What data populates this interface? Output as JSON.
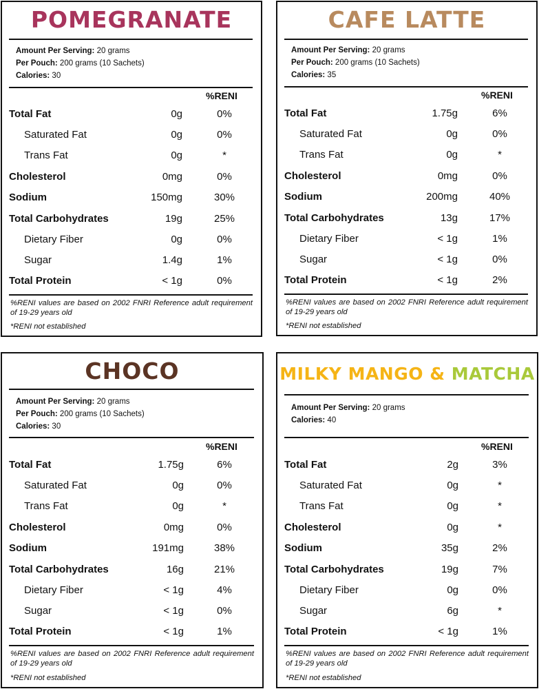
{
  "panels": [
    {
      "title": "POMEGRANATE",
      "title_color": "#a8345c",
      "amount_per_serving_label": "Amount Per Serving:",
      "amount_per_serving": "20 grams",
      "per_pouch_label": "Per Pouch:",
      "per_pouch": "200 grams (10 Sachets)",
      "calories_label": "Calories:",
      "calories": "30",
      "reni_header": "%RENI",
      "rows": [
        {
          "label": "Total Fat",
          "amount": "0g",
          "reni": "0%"
        },
        {
          "label": "Saturated Fat",
          "amount": "0g",
          "reni": "0%"
        },
        {
          "label": "Trans Fat",
          "amount": "0g",
          "reni": "*"
        },
        {
          "label": "Cholesterol",
          "amount": "0mg",
          "reni": "0%"
        },
        {
          "label": "Sodium",
          "amount": "150mg",
          "reni": "30%"
        },
        {
          "label": "Total Carbohydrates",
          "amount": "19g",
          "reni": "25%"
        },
        {
          "label": "Dietary Fiber",
          "amount": "0g",
          "reni": "0%"
        },
        {
          "label": "Sugar",
          "amount": "1.4g",
          "reni": "1%"
        },
        {
          "label": "Total Protein",
          "amount": "< 1g",
          "reni": "0%"
        }
      ],
      "footnote": "%RENI values are based on 2002 FNRI Reference adult requirement of 19-29 years old",
      "footnote2": "*RENI not established"
    },
    {
      "title": "CAFE LATTE",
      "title_color": "#b88a5e",
      "amount_per_serving_label": "Amount Per Serving:",
      "amount_per_serving": "20 grams",
      "per_pouch_label": "Per Pouch:",
      "per_pouch": "200 grams (10 Sachets)",
      "calories_label": "Calories:",
      "calories": "35",
      "reni_header": "%RENI",
      "rows": [
        {
          "label": "Total Fat",
          "amount": "1.75g",
          "reni": "6%"
        },
        {
          "label": "Saturated Fat",
          "amount": "0g",
          "reni": "0%"
        },
        {
          "label": "Trans Fat",
          "amount": "0g",
          "reni": "*"
        },
        {
          "label": "Cholesterol",
          "amount": "0mg",
          "reni": "0%"
        },
        {
          "label": "Sodium",
          "amount": "200mg",
          "reni": "40%"
        },
        {
          "label": "Total Carbohydrates",
          "amount": "13g",
          "reni": "17%"
        },
        {
          "label": "Dietary Fiber",
          "amount": "< 1g",
          "reni": "1%"
        },
        {
          "label": "Sugar",
          "amount": "< 1g",
          "reni": "0%"
        },
        {
          "label": "Total Protein",
          "amount": "< 1g",
          "reni": "2%"
        }
      ],
      "footnote": "%RENI values are based on 2002 FNRI Reference adult requirement of 19-29 years old",
      "footnote2": "*RENI not established"
    },
    {
      "title": "CHOCO",
      "title_color": "#5b3424",
      "amount_per_serving_label": "Amount Per Serving:",
      "amount_per_serving": "20 grams",
      "per_pouch_label": "Per Pouch:",
      "per_pouch": "200 grams (10 Sachets)",
      "calories_label": "Calories:",
      "calories": "30",
      "reni_header": "%RENI",
      "rows": [
        {
          "label": "Total Fat",
          "amount": "1.75g",
          "reni": "6%"
        },
        {
          "label": "Saturated Fat",
          "amount": "0g",
          "reni": "0%"
        },
        {
          "label": "Trans Fat",
          "amount": "0g",
          "reni": "*"
        },
        {
          "label": "Cholesterol",
          "amount": "0mg",
          "reni": "0%"
        },
        {
          "label": "Sodium",
          "amount": "191mg",
          "reni": "38%"
        },
        {
          "label": "Total Carbohydrates",
          "amount": "16g",
          "reni": "21%"
        },
        {
          "label": "Dietary Fiber",
          "amount": "< 1g",
          "reni": "4%"
        },
        {
          "label": "Sugar",
          "amount": "< 1g",
          "reni": "0%"
        },
        {
          "label": "Total Protein",
          "amount": "< 1g",
          "reni": "1%"
        }
      ],
      "footnote": "%RENI values are based on 2002 FNRI Reference adult requirement of 19-29 years old",
      "footnote2": "*RENI not established"
    },
    {
      "title_part1": "MILKY MANGO & ",
      "title_part2": "MATCHA",
      "title_color1": "#f5b416",
      "title_color2": "#a9c93a",
      "amount_per_serving_label": "Amount Per Serving:",
      "amount_per_serving": "20 grams",
      "calories_label": "Calories:",
      "calories": "40",
      "reni_header": "%RENI",
      "rows": [
        {
          "label": "Total Fat",
          "amount": "2g",
          "reni": "3%"
        },
        {
          "label": "Saturated Fat",
          "amount": "0g",
          "reni": "*"
        },
        {
          "label": "Trans Fat",
          "amount": "0g",
          "reni": "*"
        },
        {
          "label": "Cholesterol",
          "amount": "0g",
          "reni": "*"
        },
        {
          "label": "Sodium",
          "amount": "35g",
          "reni": "2%"
        },
        {
          "label": "Total Carbohydrates",
          "amount": "19g",
          "reni": "7%"
        },
        {
          "label": "Dietary Fiber",
          "amount": "0g",
          "reni": "0%"
        },
        {
          "label": "Sugar",
          "amount": "6g",
          "reni": "*"
        },
        {
          "label": "Total Protein",
          "amount": "< 1g",
          "reni": "1%"
        }
      ],
      "footnote": "%RENI values are based on 2002 FNRI Reference adult requirement of 19-29 years old",
      "footnote2": "*RENI not established"
    }
  ]
}
